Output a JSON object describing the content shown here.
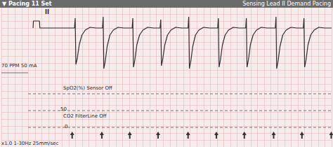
{
  "chart_data": {
    "type": "line",
    "title": "▼ Pacing 11 Set",
    "annotations": [
      "II",
      "Sensing Lead II Demand Pacing",
      "70 PPM 50 mA",
      "SpO2(%) Sensor Off",
      "50",
      "CO2 FilterLine Off",
      "0",
      "x1.0 1-30Hz 25mm/sec"
    ],
    "color": "#2e2e2e",
    "grid": true,
    "tick_labels": false,
    "xlim": [
      0,
      9.8
    ],
    "xticks": [
      0,
      0.2,
      0.4,
      0.6,
      0.8,
      1.0,
      1.2,
      1.4,
      1.6,
      1.8,
      2.0,
      2.2,
      2.4,
      2.6,
      2.8,
      3.0,
      3.2,
      3.4,
      3.6,
      3.8,
      4.0,
      4.2,
      4.4,
      4.6,
      4.8,
      5.0,
      5.2,
      5.4,
      5.6,
      5.8,
      6.0,
      6.2,
      6.4,
      6.6,
      6.8,
      7.0,
      7.2,
      7.4,
      7.6,
      7.8,
      8.0,
      8.2,
      8.4,
      8.6,
      8.8,
      9.0,
      9.2,
      9.4,
      9.6,
      9.8
    ],
    "ylim": [
      -8.5,
      2
    ],
    "yticks": [
      -8.5,
      -8,
      -7.5,
      -7,
      -6.5,
      -6,
      -5.5,
      -5,
      -4.5,
      -4,
      -3.5,
      -3,
      -2.5,
      -2,
      -1.5,
      -1,
      -0.5,
      0,
      0.5,
      1,
      1.5,
      2
    ],
    "x": [
      0.94,
      0.95,
      1.13,
      1.14,
      2.17,
      2.19,
      2.21,
      2.25,
      2.31,
      2.39,
      2.49,
      2.63,
      2.81,
      3.0,
      3.02,
      3.04,
      3.08,
      3.14,
      3.22,
      3.32,
      3.46,
      3.64,
      3.88,
      3.9,
      3.92,
      3.96,
      4.02,
      4.1,
      4.2,
      4.34,
      4.52,
      4.71,
      4.73,
      4.75,
      4.79,
      4.85,
      4.93,
      5.03,
      5.17,
      5.35,
      5.54,
      5.56,
      5.58,
      5.62,
      5.68,
      5.76,
      5.86,
      6.0,
      6.18,
      6.42,
      6.44,
      6.46,
      6.5,
      6.56,
      6.64,
      6.74,
      6.88,
      7.06,
      7.25,
      7.27,
      7.29,
      7.33,
      7.39,
      7.47,
      7.57,
      7.71,
      7.89,
      8.13,
      8.15,
      8.17,
      8.21,
      8.27,
      8.35,
      8.45,
      8.59,
      8.77,
      8.96,
      8.98,
      9.0,
      9.04,
      9.1,
      9.18,
      9.28,
      9.42,
      9.6,
      9.8
    ],
    "values": [
      0,
      0.5,
      0.5,
      0,
      0,
      0.7,
      -2.6,
      -2.2,
      -1.2,
      -0.5,
      -0.15,
      0.05,
      0,
      0,
      0.8,
      -2.9,
      -2.4,
      -1.3,
      -0.5,
      -0.15,
      0.05,
      0,
      0,
      0.7,
      -2.8,
      -2.3,
      -1.2,
      -0.5,
      -0.15,
      0.05,
      0,
      0,
      0.6,
      -2.7,
      -2.2,
      -1.2,
      -0.5,
      -0.15,
      0.05,
      0,
      0,
      0.8,
      -2.9,
      -2.4,
      -1.3,
      -0.5,
      -0.15,
      0.05,
      0,
      0,
      0.7,
      -2.8,
      -2.3,
      -1.2,
      -0.5,
      -0.15,
      0.05,
      0,
      0,
      0.7,
      -2.8,
      -2.3,
      -1.2,
      -0.5,
      -0.15,
      0.05,
      0,
      0,
      0.8,
      -2.9,
      -2.4,
      -1.3,
      -0.5,
      -0.15,
      0.05,
      0,
      0,
      0.7,
      -2.8,
      -2.3,
      -1.2,
      -0.5,
      -0.15,
      0.05,
      0,
      0
    ],
    "pacing_marks": [
      2.1,
      2.98,
      3.81,
      4.65,
      5.54,
      6.38,
      7.21,
      8.08,
      8.92,
      9.79
    ]
  }
}
